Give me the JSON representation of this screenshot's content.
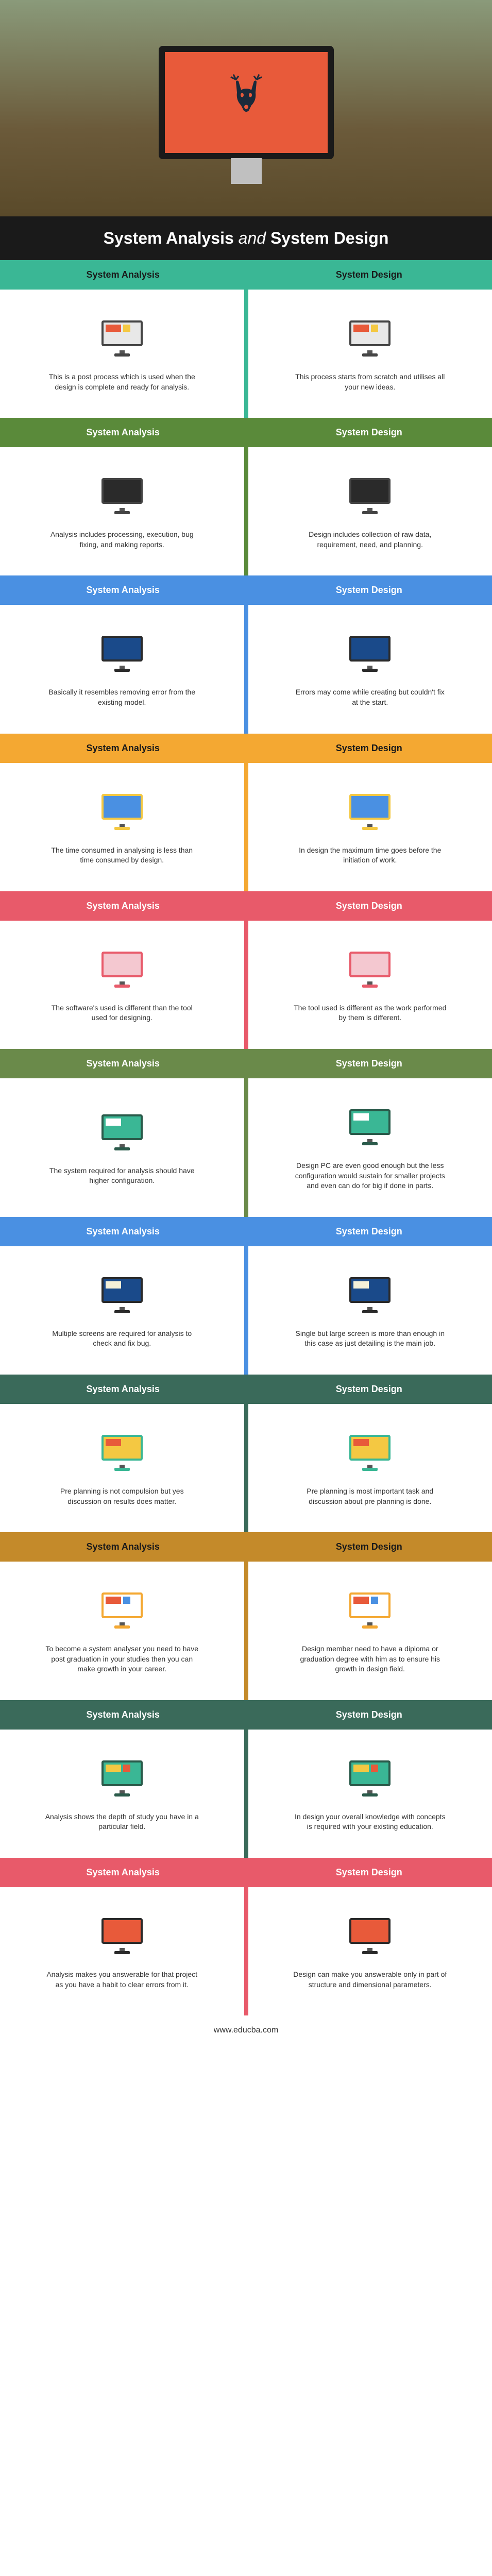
{
  "title_left": "System Analysis",
  "title_and": "and",
  "title_right": "System Design",
  "footer": "www.educba.com",
  "header_left": "System Analysis",
  "header_right": "System Design",
  "sections": [
    {
      "header_bg": "#3ab795",
      "header_text": "#1a1a1a",
      "divider": "#3ab795",
      "icon_screen": "#e8e8e8",
      "icon_frame": "#444",
      "icon_accent1": "#e85a3a",
      "icon_accent2": "#f4c842",
      "left": "This is a post process which is used when the design is complete and ready for analysis.",
      "right": "This process starts from scratch and utilises all your new ideas."
    },
    {
      "header_bg": "#5a8a3a",
      "header_text": "#ffffff",
      "divider": "#5a8a3a",
      "icon_screen": "#2a2a2a",
      "icon_frame": "#444",
      "icon_accent1": "#2a2a2a",
      "icon_accent2": "#2a2a2a",
      "left": "Analysis includes processing, execution, bug fixing, and making reports.",
      "right": "Design includes collection of raw data, requirement, need, and planning."
    },
    {
      "header_bg": "#4a90e2",
      "header_text": "#ffffff",
      "divider": "#4a90e2",
      "icon_screen": "#1a4a8a",
      "icon_frame": "#2a2a2a",
      "icon_accent1": "#1a4a8a",
      "icon_accent2": "#1a4a8a",
      "left": "Basically it resembles removing error from the existing model.",
      "right": "Errors may come while creating but couldn't fix at the start."
    },
    {
      "header_bg": "#f4a832",
      "header_text": "#1a1a1a",
      "divider": "#f4a832",
      "icon_screen": "#4a90e2",
      "icon_frame": "#f4c842",
      "icon_accent1": "#4a90e2",
      "icon_accent2": "#4a90e2",
      "left": "The time consumed in analysing is less than time consumed by design.",
      "right": "In design the maximum time goes before the initiation of work."
    },
    {
      "header_bg": "#e85a6a",
      "header_text": "#ffffff",
      "divider": "#e85a6a",
      "icon_screen": "#f4c8d0",
      "icon_frame": "#e85a6a",
      "icon_accent1": "#f4c8d0",
      "icon_accent2": "#f4c8d0",
      "left": "The software's used is different than the tool used for designing.",
      "right": "The tool used is different as the work performed by them is different."
    },
    {
      "header_bg": "#6a8a4a",
      "header_text": "#ffffff",
      "divider": "#6a8a4a",
      "icon_screen": "#3ab795",
      "icon_frame": "#2a5a4a",
      "icon_accent1": "#ffffff",
      "icon_accent2": "#3ab795",
      "left": "The system required for analysis should have higher configuration.",
      "right": "Design PC are even good enough but the less configuration would sustain for smaller projects and even can do for big if done in parts."
    },
    {
      "header_bg": "#4a90e2",
      "header_text": "#ffffff",
      "divider": "#4a90e2",
      "icon_screen": "#1a4a8a",
      "icon_frame": "#2a2a2a",
      "icon_accent1": "#f4f0d8",
      "icon_accent2": "#1a4a8a",
      "left": "Multiple screens are required for analysis to check and fix bug.",
      "right": "Single but large screen is more than enough in this case as just detailing is the main job."
    },
    {
      "header_bg": "#3a6a5a",
      "header_text": "#ffffff",
      "divider": "#3a6a5a",
      "icon_screen": "#f4c842",
      "icon_frame": "#3ab795",
      "icon_accent1": "#e85a3a",
      "icon_accent2": "#f4c842",
      "left": "Pre planning is not compulsion but yes discussion on results does matter.",
      "right": "Pre planning is most important task and discussion about pre planning is done."
    },
    {
      "header_bg": "#c48a2a",
      "header_text": "#1a1a1a",
      "divider": "#c48a2a",
      "icon_screen": "#ffffff",
      "icon_frame": "#f4a832",
      "icon_accent1": "#e85a3a",
      "icon_accent2": "#4a90e2",
      "left": "To become a system analyser you need to have post graduation in your studies then you can make growth in your career.",
      "right": "Design member need to have a diploma or graduation degree with him as to ensure his growth in design field."
    },
    {
      "header_bg": "#3a6a5a",
      "header_text": "#ffffff",
      "divider": "#3a6a5a",
      "icon_screen": "#3ab795",
      "icon_frame": "#2a5a4a",
      "icon_accent1": "#f4c842",
      "icon_accent2": "#e85a3a",
      "left": "Analysis shows the depth of study you have in a particular field.",
      "right": "In design your overall knowledge with concepts is required with your existing education."
    },
    {
      "header_bg": "#e85a6a",
      "header_text": "#ffffff",
      "divider": "#e85a6a",
      "icon_screen": "#e85a3a",
      "icon_frame": "#2a2a2a",
      "icon_accent1": "#e85a3a",
      "icon_accent2": "#e85a3a",
      "left": "Analysis makes you answerable for that project as you have a habit to clear errors from it.",
      "right": "Design can make you answerable only in part of structure and dimensional parameters."
    }
  ]
}
